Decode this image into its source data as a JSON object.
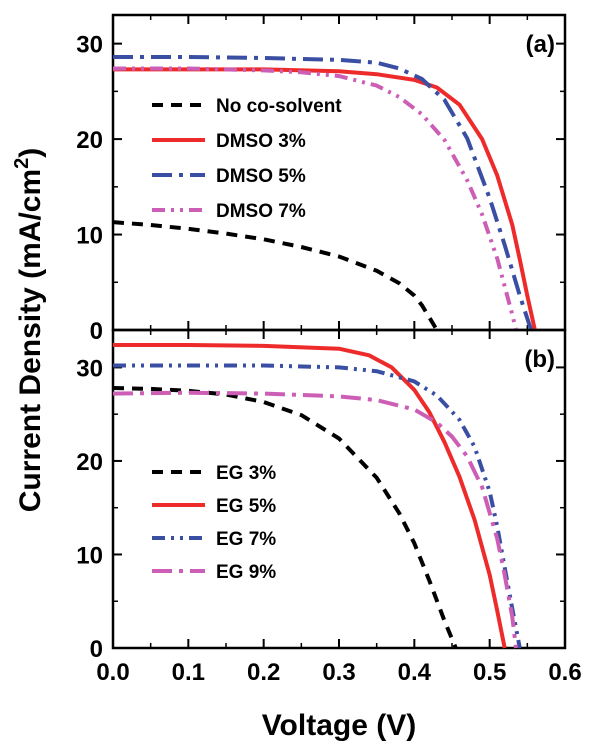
{
  "chart_data": [
    {
      "type": "line",
      "panel": "(a)",
      "xlim": [
        0.0,
        0.6
      ],
      "ylim": [
        0,
        33
      ],
      "y_ticks": [
        "0",
        "10",
        "20",
        "30"
      ],
      "legend_position": "left",
      "series": [
        {
          "name": "No co-solvent",
          "color": "#000000",
          "dash": "dash",
          "x": [
            0.0,
            0.05,
            0.1,
            0.15,
            0.2,
            0.25,
            0.3,
            0.35,
            0.38,
            0.4,
            0.41,
            0.42,
            0.43
          ],
          "y": [
            11.3,
            11.0,
            10.6,
            10.1,
            9.5,
            8.7,
            7.7,
            6.2,
            4.9,
            3.6,
            2.6,
            1.3,
            0.0
          ]
        },
        {
          "name": "DMSO 3%",
          "color": "#ee2b2b",
          "dash": "solid",
          "x": [
            0.0,
            0.1,
            0.2,
            0.3,
            0.35,
            0.4,
            0.43,
            0.46,
            0.49,
            0.51,
            0.53,
            0.54,
            0.55,
            0.56
          ],
          "y": [
            27.3,
            27.3,
            27.3,
            27.1,
            26.8,
            26.2,
            25.4,
            23.6,
            20.0,
            16.2,
            11.0,
            7.4,
            3.6,
            0.0
          ]
        },
        {
          "name": "DMSO 5%",
          "color": "#3a4fa3",
          "dash": "dashdot",
          "x": [
            0.0,
            0.1,
            0.2,
            0.3,
            0.35,
            0.38,
            0.41,
            0.44,
            0.47,
            0.5,
            0.52,
            0.54,
            0.555
          ],
          "y": [
            28.6,
            28.6,
            28.5,
            28.3,
            28.0,
            27.4,
            26.3,
            24.1,
            20.1,
            13.8,
            8.9,
            3.6,
            0.0
          ]
        },
        {
          "name": "DMSO 7%",
          "color": "#cc5fb5",
          "dash": "dashdotdot",
          "x": [
            0.0,
            0.1,
            0.2,
            0.25,
            0.3,
            0.35,
            0.38,
            0.41,
            0.44,
            0.47,
            0.49,
            0.51,
            0.53,
            0.535
          ],
          "y": [
            27.4,
            27.4,
            27.2,
            27.0,
            26.6,
            25.6,
            24.4,
            22.6,
            19.9,
            15.7,
            12.1,
            7.5,
            1.6,
            0.0
          ]
        }
      ]
    },
    {
      "type": "line",
      "panel": "(b)",
      "xlabel": "Voltage (V)",
      "xlim": [
        0.0,
        0.6
      ],
      "ylim": [
        0,
        34
      ],
      "x_ticks": [
        "0.0",
        "0.1",
        "0.2",
        "0.3",
        "0.4",
        "0.5",
        "0.6"
      ],
      "y_ticks": [
        "0",
        "10",
        "20",
        "30"
      ],
      "legend_position": "left",
      "series": [
        {
          "name": "EG 3%",
          "color": "#000000",
          "dash": "dash",
          "x": [
            0.0,
            0.05,
            0.1,
            0.15,
            0.2,
            0.25,
            0.3,
            0.35,
            0.38,
            0.4,
            0.42,
            0.44,
            0.455
          ],
          "y": [
            27.8,
            27.7,
            27.5,
            27.1,
            26.3,
            24.9,
            22.4,
            18.2,
            14.4,
            11.2,
            7.2,
            2.9,
            0.0
          ]
        },
        {
          "name": "EG 5%",
          "color": "#ee2b2b",
          "dash": "solid",
          "x": [
            0.0,
            0.1,
            0.2,
            0.3,
            0.34,
            0.37,
            0.4,
            0.42,
            0.44,
            0.46,
            0.48,
            0.5,
            0.51,
            0.52
          ],
          "y": [
            32.4,
            32.4,
            32.3,
            32.0,
            31.3,
            30.0,
            27.6,
            25.2,
            22.0,
            18.3,
            13.7,
            7.8,
            4.0,
            0.0
          ]
        },
        {
          "name": "EG 7%",
          "color": "#3a4fa3",
          "dash": "dashdotdot",
          "x": [
            0.0,
            0.1,
            0.2,
            0.3,
            0.35,
            0.4,
            0.43,
            0.46,
            0.48,
            0.5,
            0.51,
            0.52,
            0.53,
            0.54
          ],
          "y": [
            30.2,
            30.2,
            30.2,
            30.0,
            29.6,
            28.5,
            27.0,
            24.4,
            21.5,
            16.7,
            13.0,
            8.6,
            4.2,
            0.0
          ]
        },
        {
          "name": "EG 9%",
          "color": "#cc5fb5",
          "dash": "dashdot",
          "x": [
            0.0,
            0.1,
            0.2,
            0.3,
            0.35,
            0.4,
            0.43,
            0.45,
            0.47,
            0.49,
            0.51,
            0.52,
            0.53,
            0.535
          ],
          "y": [
            27.2,
            27.3,
            27.2,
            26.9,
            26.5,
            25.5,
            24.1,
            22.6,
            20.5,
            17.2,
            11.7,
            7.8,
            3.3,
            0.0
          ]
        }
      ]
    }
  ],
  "shared": {
    "ylabel_main": "Current Density (mA/cm",
    "ylabel_sup": "2",
    "ylabel_close": ")"
  }
}
